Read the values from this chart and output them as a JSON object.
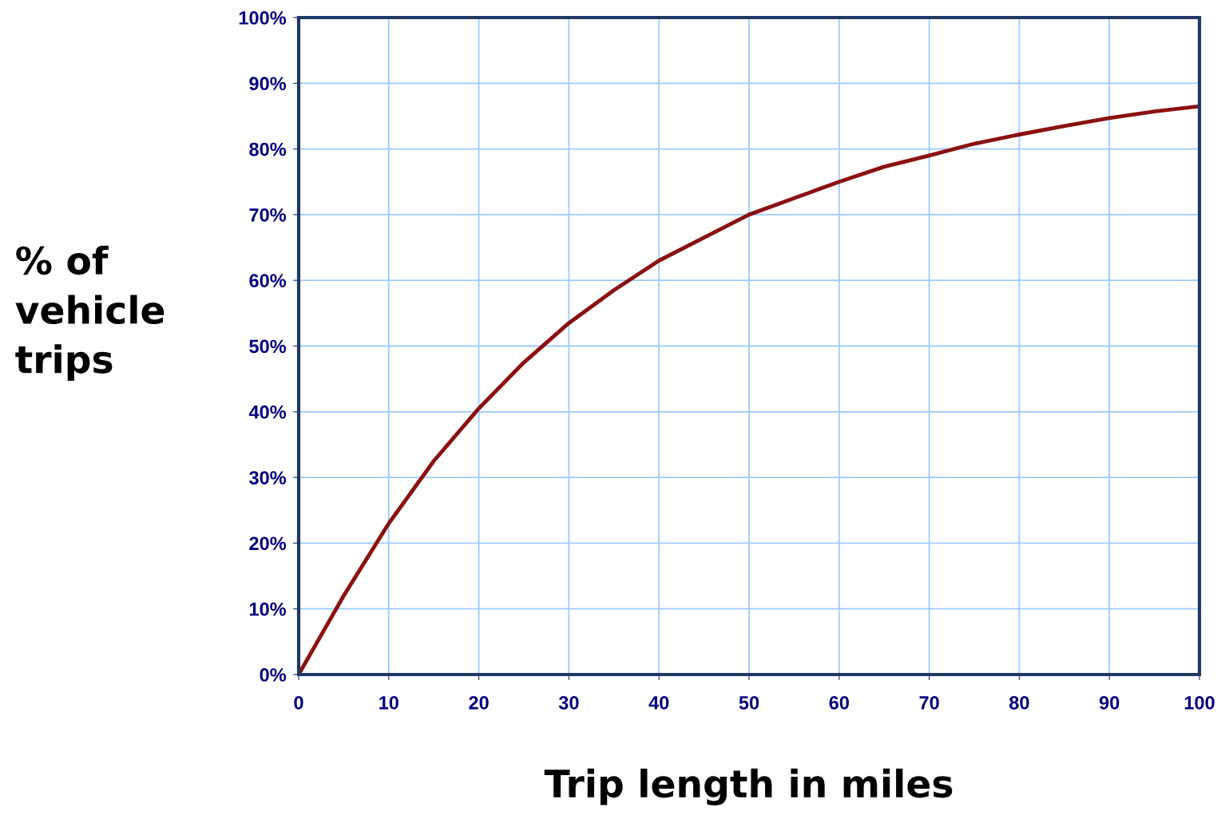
{
  "chart_data": {
    "type": "line",
    "xlabel": "Trip length in miles",
    "ylabel": "% of\nvehicle\ntrips",
    "x": [
      0,
      2.5,
      5,
      7.5,
      10,
      15,
      20,
      25,
      30,
      35,
      40,
      45,
      50,
      55,
      60,
      65,
      70,
      75,
      80,
      85,
      90,
      95,
      100
    ],
    "series": [
      {
        "color": "#8b1010",
        "values": [
          0,
          6,
          12,
          17.5,
          23,
          32.5,
          40.5,
          47.5,
          53.5,
          58.5,
          63,
          66.5,
          70,
          72.5,
          75,
          77.3,
          79,
          80.8,
          82.2,
          83.5,
          84.7,
          85.7,
          86.5
        ]
      }
    ],
    "xlim": [
      0,
      100
    ],
    "xticks": [
      0,
      10,
      20,
      30,
      40,
      50,
      60,
      70,
      80,
      90,
      100
    ],
    "ylim": [
      0,
      100
    ],
    "yticks": [
      {
        "value": 0,
        "label": "0%"
      },
      {
        "value": 10,
        "label": "10%"
      },
      {
        "value": 20,
        "label": "20%"
      },
      {
        "value": 30,
        "label": "30%"
      },
      {
        "value": 40,
        "label": "40%"
      },
      {
        "value": 50,
        "label": "50%"
      },
      {
        "value": 60,
        "label": "60%"
      },
      {
        "value": 70,
        "label": "70%"
      },
      {
        "value": 80,
        "label": "80%"
      },
      {
        "value": 90,
        "label": "90%"
      },
      {
        "value": 100,
        "label": "100%"
      }
    ],
    "grid": true,
    "marker": "none",
    "line_style": "solid"
  }
}
